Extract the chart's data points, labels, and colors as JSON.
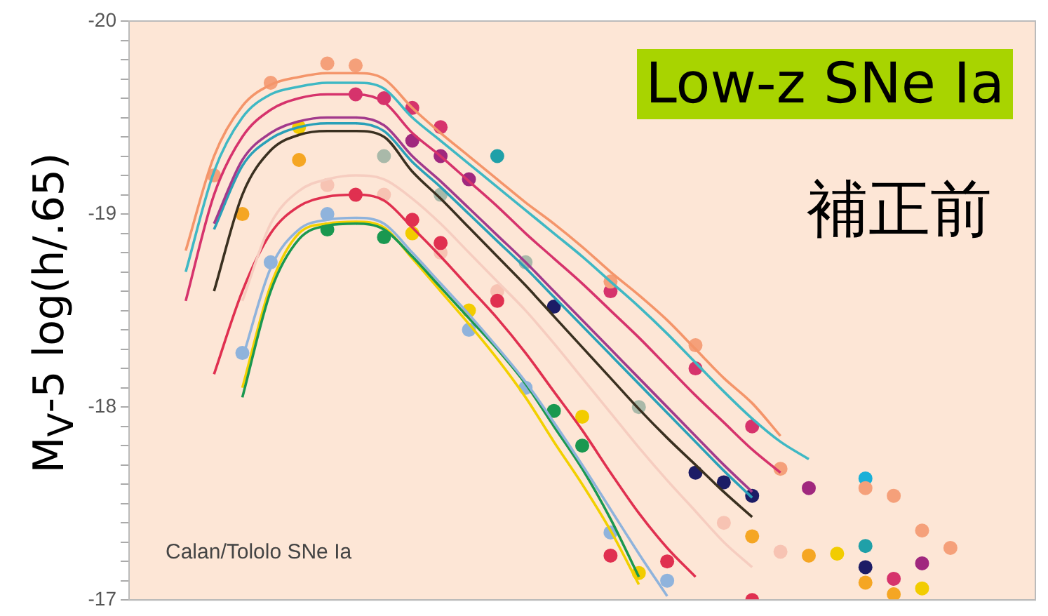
{
  "chart_data": {
    "type": "line",
    "title": "Low-z SNe Ia",
    "subtitle": "補正前",
    "ylabel": "M$_{V}$-5 log(h/.65)",
    "annotations": [
      "Calan/Tololo SNe Ia"
    ],
    "categories": [
      null,
      null,
      null,
      null,
      null,
      null,
      null,
      null,
      null,
      null,
      null,
      null,
      null,
      null,
      null,
      null,
      null,
      null,
      null,
      null,
      null,
      null,
      null,
      null,
      null,
      null,
      null,
      null,
      null,
      null,
      null,
      null,
      null
    ],
    "ylim": [
      -17,
      -20
    ],
    "yticks": [
      -20,
      {
        "value": -19.9,
        "label": null
      },
      {
        "value": -19.8,
        "label": null
      },
      {
        "value": -19.7,
        "label": null
      },
      {
        "value": -19.6,
        "label": null
      },
      {
        "value": -19.5,
        "label": null
      },
      {
        "value": -19.4,
        "label": null
      },
      {
        "value": -19.3,
        "label": null
      },
      {
        "value": -19.2,
        "label": null
      },
      {
        "value": -19.1,
        "label": null
      },
      -19,
      {
        "value": -18.9,
        "label": null
      },
      {
        "value": -18.8,
        "label": null
      },
      {
        "value": -18.7,
        "label": null
      },
      {
        "value": -18.6,
        "label": null
      },
      {
        "value": -18.5,
        "label": null
      },
      {
        "value": -18.4,
        "label": null
      },
      {
        "value": -18.3,
        "label": null
      },
      {
        "value": -18.2,
        "label": null
      },
      {
        "value": -18.1,
        "label": null
      },
      -18,
      {
        "value": -17.9,
        "label": null
      },
      {
        "value": -17.8,
        "label": null
      },
      {
        "value": -17.7,
        "label": null
      },
      {
        "value": -17.6,
        "label": null
      },
      {
        "value": -17.5,
        "label": null
      },
      {
        "value": -17.4,
        "label": null
      },
      {
        "value": -17.3,
        "label": null
      },
      {
        "value": -17.2,
        "label": null
      },
      {
        "value": -17.1,
        "label": null
      },
      -17
    ],
    "tick_labels": "y",
    "series": [
      {
        "type": "line",
        "marker": "none",
        "color": "#f4956a",
        "values": [
          null,
          null,
          -18.81,
          -19.3,
          -19.56,
          -19.67,
          -19.71,
          -19.73,
          -19.73,
          -19.7,
          -19.55,
          -19.42,
          -19.3,
          -19.18,
          -19.06,
          -18.95,
          -18.83,
          -18.7,
          -18.58,
          -18.45,
          -18.3,
          -18.15,
          -18.02,
          -17.85,
          null,
          null,
          null,
          null,
          null,
          null,
          null,
          null,
          null
        ]
      },
      {
        "type": "line",
        "marker": "none",
        "color": "#3fb8c4",
        "values": [
          null,
          null,
          -18.7,
          -19.22,
          -19.5,
          -19.62,
          -19.66,
          -19.68,
          -19.68,
          -19.65,
          -19.5,
          -19.38,
          -19.26,
          -19.14,
          -19.02,
          -18.9,
          -18.78,
          -18.65,
          -18.52,
          -18.38,
          -18.23,
          -18.08,
          -17.94,
          -17.82,
          -17.73,
          null,
          null,
          null,
          null,
          null,
          null,
          null,
          null
        ]
      },
      {
        "type": "line",
        "marker": "none",
        "color": "#d6336c",
        "values": [
          null,
          null,
          -18.55,
          -19.1,
          -19.4,
          -19.54,
          -19.6,
          -19.62,
          -19.62,
          -19.58,
          -19.42,
          -19.3,
          -19.17,
          -19.04,
          -18.9,
          -18.77,
          -18.64,
          -18.5,
          -18.36,
          -18.21,
          -18.06,
          -17.92,
          -17.78,
          -17.66,
          null,
          null,
          null,
          null,
          null,
          null,
          null,
          null,
          null
        ]
      },
      {
        "type": "line",
        "marker": "none",
        "color": "#a23a8c",
        "values": [
          null,
          null,
          null,
          -18.95,
          -19.28,
          -19.42,
          -19.48,
          -19.5,
          -19.5,
          -19.46,
          -19.3,
          -19.17,
          -19.03,
          -18.89,
          -18.75,
          -18.6,
          -18.45,
          -18.3,
          -18.15,
          -18.0,
          -17.85,
          -17.7,
          -17.56,
          null,
          null,
          null,
          null,
          null,
          null,
          null,
          null,
          null,
          null
        ]
      },
      {
        "type": "line",
        "marker": "none",
        "color": "#2aa0b8",
        "values": [
          null,
          null,
          null,
          -18.92,
          -19.25,
          -19.39,
          -19.45,
          -19.47,
          -19.47,
          -19.43,
          -19.27,
          -19.14,
          -19.0,
          -18.86,
          -18.72,
          -18.57,
          -18.42,
          -18.27,
          -18.12,
          -17.97,
          -17.82,
          -17.67,
          -17.53,
          null,
          null,
          null,
          null,
          null,
          null,
          null,
          null,
          null,
          null
        ]
      },
      {
        "type": "line",
        "marker": "none",
        "color": "#3a3020",
        "values": [
          null,
          null,
          null,
          -18.6,
          -19.1,
          -19.33,
          -19.41,
          -19.43,
          -19.43,
          -19.4,
          -19.22,
          -19.08,
          -18.93,
          -18.78,
          -18.63,
          -18.47,
          -18.31,
          -18.15,
          -17.99,
          -17.84,
          -17.7,
          -17.56,
          -17.43,
          null,
          null,
          null,
          null,
          null,
          null,
          null,
          null,
          null,
          null
        ]
      },
      {
        "type": "line",
        "marker": "none",
        "color": "#f6cdc0",
        "values": [
          null,
          null,
          null,
          null,
          -18.55,
          -18.95,
          -19.12,
          -19.18,
          -19.2,
          -19.18,
          -19.08,
          -18.95,
          -18.8,
          -18.65,
          -18.5,
          -18.33,
          -18.15,
          -17.97,
          -17.79,
          -17.62,
          -17.46,
          -17.3,
          -17.17,
          null,
          null,
          null,
          null,
          null,
          null,
          null,
          null,
          null,
          null
        ]
      },
      {
        "type": "line",
        "marker": "none",
        "color": "#e03050",
        "values": [
          null,
          null,
          null,
          -18.17,
          -18.6,
          -18.9,
          -19.04,
          -19.09,
          -19.1,
          -19.07,
          -18.93,
          -18.78,
          -18.62,
          -18.46,
          -18.28,
          -18.08,
          -17.88,
          -17.66,
          -17.45,
          -17.27,
          -17.12,
          null,
          null,
          null,
          null,
          null,
          null,
          null,
          null,
          null,
          null,
          null,
          null
        ]
      },
      {
        "type": "line",
        "marker": "none",
        "color": "#8fb3dc",
        "values": [
          null,
          null,
          null,
          null,
          -18.25,
          -18.72,
          -18.92,
          -18.97,
          -18.98,
          -18.95,
          -18.8,
          -18.64,
          -18.48,
          -18.31,
          -18.13,
          -17.92,
          -17.7,
          -17.47,
          -17.24,
          -17.02,
          null,
          null,
          null,
          null,
          null,
          null,
          null,
          null,
          null,
          null,
          null,
          null,
          null
        ]
      },
      {
        "type": "line",
        "marker": "none",
        "color": "#1a9850",
        "values": [
          null,
          null,
          null,
          null,
          -18.05,
          -18.6,
          -18.87,
          -18.94,
          -18.95,
          -18.92,
          -18.78,
          -18.62,
          -18.46,
          -18.3,
          -18.12,
          -17.9,
          -17.68,
          -17.42,
          -17.12,
          null,
          null,
          null,
          null,
          null,
          null,
          null,
          null,
          null,
          null,
          null,
          null,
          null,
          null
        ]
      },
      {
        "type": "line",
        "marker": "none",
        "color": "#f2d000",
        "values": [
          null,
          null,
          null,
          null,
          -18.1,
          -18.63,
          -18.9,
          -18.95,
          -18.96,
          -18.93,
          -18.77,
          -18.6,
          -18.43,
          -18.25,
          -18.05,
          -17.82,
          -17.6,
          -17.36,
          -17.08,
          null,
          null,
          null,
          null,
          null,
          null,
          null,
          null,
          null,
          null,
          null,
          null,
          null,
          null
        ]
      },
      {
        "type": "scatter",
        "marker": "circle",
        "color": "#f5a07a",
        "values": [
          null,
          null,
          null,
          -19.2,
          null,
          -19.68,
          null,
          -19.78,
          -19.77,
          null,
          null,
          null,
          null,
          null,
          null,
          null,
          null,
          -18.65,
          null,
          null,
          -18.32,
          null,
          null,
          -17.68,
          null,
          null,
          -17.58,
          -17.54,
          -17.36,
          -17.27,
          null,
          null,
          null
        ]
      },
      {
        "type": "scatter",
        "marker": "circle",
        "color": "#d6336c",
        "values": [
          null,
          null,
          null,
          null,
          null,
          null,
          null,
          null,
          -19.62,
          -19.6,
          -19.55,
          -19.45,
          null,
          null,
          null,
          null,
          null,
          -18.6,
          null,
          null,
          -18.2,
          null,
          -17.9,
          null,
          null,
          null,
          null,
          -17.11,
          null,
          null,
          null,
          null,
          null
        ]
      },
      {
        "type": "scatter",
        "marker": "circle",
        "color": "#a0287e",
        "values": [
          null,
          null,
          null,
          null,
          null,
          null,
          null,
          null,
          null,
          null,
          -19.38,
          -19.3,
          -19.18,
          null,
          null,
          null,
          null,
          null,
          null,
          null,
          null,
          null,
          null,
          null,
          -17.58,
          null,
          null,
          null,
          -17.19,
          null,
          null,
          null,
          null
        ]
      },
      {
        "type": "scatter",
        "marker": "circle",
        "color": "#f5a623",
        "values": [
          null,
          null,
          null,
          null,
          -19.0,
          null,
          -19.28,
          null,
          null,
          null,
          null,
          null,
          null,
          null,
          null,
          null,
          null,
          null,
          null,
          null,
          null,
          null,
          -17.33,
          null,
          -17.23,
          null,
          -17.09,
          -17.03,
          null,
          null,
          null,
          null,
          null
        ]
      },
      {
        "type": "scatter",
        "marker": "circle",
        "color": "#f2cc00",
        "values": [
          null,
          null,
          null,
          null,
          null,
          null,
          -19.45,
          null,
          null,
          null,
          -18.9,
          null,
          -18.5,
          null,
          null,
          null,
          -17.95,
          null,
          -17.14,
          null,
          null,
          null,
          null,
          null,
          null,
          -17.24,
          null,
          null,
          -17.06,
          null,
          null,
          null,
          null
        ]
      },
      {
        "type": "scatter",
        "marker": "circle",
        "color": "#1a9850",
        "values": [
          null,
          null,
          null,
          null,
          null,
          null,
          null,
          -18.92,
          null,
          -18.88,
          null,
          null,
          null,
          null,
          null,
          -17.98,
          -17.8,
          null,
          null,
          null,
          null,
          null,
          null,
          null,
          null,
          null,
          null,
          null,
          null,
          null,
          null,
          null,
          null
        ]
      },
      {
        "type": "scatter",
        "marker": "circle",
        "color": "#8fb3dc",
        "values": [
          null,
          null,
          null,
          null,
          -18.28,
          -18.75,
          null,
          -19.0,
          null,
          null,
          null,
          null,
          -18.4,
          null,
          -18.1,
          null,
          null,
          -17.35,
          null,
          -17.1,
          null,
          null,
          null,
          null,
          null,
          null,
          null,
          null,
          null,
          null,
          null,
          null,
          null
        ]
      },
      {
        "type": "scatter",
        "marker": "circle",
        "color": "#e03050",
        "values": [
          null,
          null,
          null,
          null,
          null,
          null,
          null,
          null,
          -19.1,
          null,
          -18.97,
          -18.85,
          null,
          -18.55,
          null,
          null,
          null,
          -17.23,
          null,
          -17.2,
          null,
          null,
          -17.0,
          null,
          null,
          null,
          null,
          null,
          null,
          null,
          null,
          null,
          null
        ]
      },
      {
        "type": "scatter",
        "marker": "circle",
        "color": "#1c1c66",
        "values": [
          null,
          null,
          null,
          null,
          null,
          null,
          null,
          null,
          null,
          null,
          null,
          null,
          null,
          null,
          null,
          -18.52,
          null,
          null,
          null,
          null,
          -17.66,
          -17.61,
          -17.54,
          null,
          null,
          null,
          -17.17,
          null,
          null,
          null,
          null,
          null,
          null
        ]
      },
      {
        "type": "scatter",
        "marker": "circle",
        "color": "#a9b9a9",
        "values": [
          null,
          null,
          null,
          null,
          null,
          null,
          null,
          null,
          null,
          -19.3,
          null,
          -19.1,
          null,
          null,
          -18.75,
          null,
          null,
          null,
          -18.0,
          null,
          null,
          null,
          null,
          null,
          null,
          null,
          null,
          null,
          null,
          null,
          null,
          null,
          null
        ]
      },
      {
        "type": "scatter",
        "marker": "circle",
        "color": "#f7c3b3",
        "values": [
          null,
          null,
          null,
          null,
          null,
          null,
          null,
          -19.15,
          null,
          -19.1,
          null,
          -18.8,
          null,
          -18.6,
          null,
          null,
          null,
          null,
          null,
          null,
          null,
          -17.4,
          null,
          -17.25,
          null,
          null,
          null,
          null,
          null,
          null,
          null,
          null,
          null
        ]
      },
      {
        "type": "scatter",
        "marker": "circle",
        "color": "#1ab0d8",
        "values": [
          null,
          null,
          null,
          null,
          null,
          null,
          null,
          null,
          null,
          null,
          null,
          null,
          null,
          null,
          null,
          null,
          null,
          null,
          null,
          null,
          null,
          null,
          null,
          null,
          null,
          null,
          -17.63,
          null,
          null,
          null,
          null,
          null,
          null
        ]
      },
      {
        "type": "scatter",
        "marker": "circle",
        "color": "#20a0a8",
        "values": [
          null,
          null,
          null,
          null,
          null,
          null,
          null,
          null,
          null,
          null,
          null,
          null,
          null,
          -19.3,
          null,
          null,
          null,
          null,
          null,
          null,
          null,
          null,
          null,
          null,
          null,
          null,
          -17.28,
          null,
          null,
          null,
          null,
          null,
          null
        ]
      }
    ]
  }
}
